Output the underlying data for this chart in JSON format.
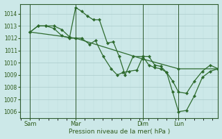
{
  "background_color": "#cce8e8",
  "plot_bg_color": "#cce8e8",
  "line_color": "#2d6a2d",
  "marker_color": "#2d6a2d",
  "grid_major_color": "#aacaca",
  "grid_minor_color": "#bcdada",
  "tick_label_color": "#2d5a1a",
  "xlabel": "Pression niveau de la mer( hPa )",
  "ylim": [
    1005.5,
    1014.8
  ],
  "yticks": [
    1006,
    1007,
    1008,
    1009,
    1010,
    1011,
    1012,
    1013,
    1014
  ],
  "xtick_labels": [
    "Sam",
    "Mar",
    "Dim",
    "Lun"
  ],
  "xtick_positions": [
    0.05,
    0.28,
    0.62,
    0.8
  ],
  "xlim": [
    0.0,
    1.0
  ],
  "vline_positions": [
    0.05,
    0.28,
    0.62,
    0.8
  ],
  "vline_color": "#2d5a2d",
  "series": [
    {
      "x": [
        0.05,
        0.09,
        0.13,
        0.17,
        0.21,
        0.25,
        0.28,
        0.31,
        0.34,
        0.37,
        0.4,
        0.44,
        0.47,
        0.5,
        0.53,
        0.57,
        0.62,
        0.65,
        0.68,
        0.71,
        0.74,
        0.77,
        0.8,
        0.84,
        0.88,
        0.92,
        0.96,
        1.0
      ],
      "y": [
        1012.5,
        1013.0,
        1013.0,
        1013.0,
        1012.7,
        1012.1,
        1014.5,
        1014.2,
        1013.8,
        1013.5,
        1013.5,
        1011.6,
        1011.7,
        1010.5,
        1009.0,
        1010.5,
        1010.5,
        1009.8,
        1009.6,
        1009.5,
        1009.2,
        1007.6,
        1006.0,
        1006.1,
        1007.3,
        1008.8,
        1009.3,
        1009.5
      ]
    },
    {
      "x": [
        0.05,
        0.28,
        0.62,
        0.8,
        1.0
      ],
      "y": [
        1012.5,
        1012.0,
        1010.3,
        1009.5,
        1009.5
      ]
    },
    {
      "x": [
        0.05,
        0.09,
        0.13,
        0.17,
        0.21,
        0.25,
        0.28,
        0.31,
        0.35,
        0.38,
        0.42,
        0.46,
        0.49,
        0.52,
        0.55,
        0.59,
        0.62,
        0.65,
        0.68,
        0.71,
        0.74,
        0.77,
        0.8,
        0.84,
        0.88,
        0.92,
        0.96,
        1.0
      ],
      "y": [
        1012.5,
        1013.0,
        1013.0,
        1012.8,
        1012.2,
        1012.0,
        1012.0,
        1012.0,
        1011.5,
        1011.8,
        1010.5,
        1009.5,
        1009.0,
        1009.2,
        1009.3,
        1009.4,
        1010.5,
        1010.5,
        1009.8,
        1009.7,
        1009.2,
        1008.5,
        1007.6,
        1007.5,
        1008.5,
        1009.3,
        1009.8,
        1009.5
      ]
    }
  ]
}
